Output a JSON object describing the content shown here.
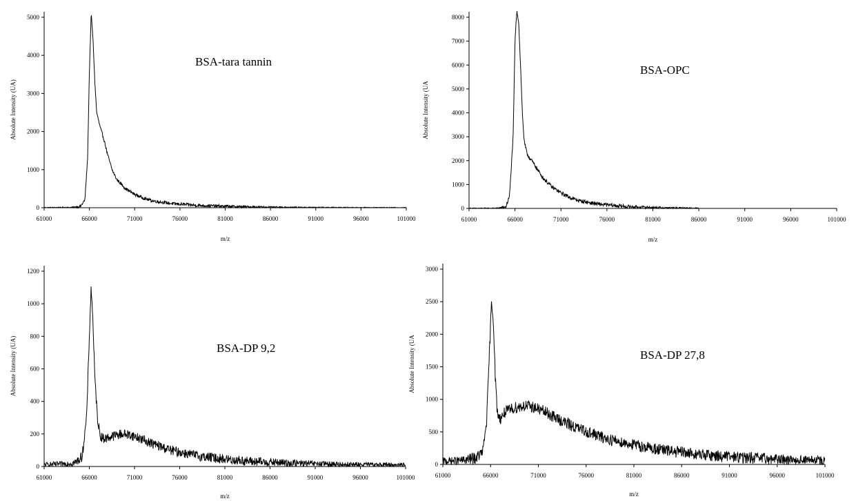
{
  "chart_data": [
    {
      "type": "line",
      "annotation": "BSA-tara tannin",
      "xlabel": "m/z",
      "ylabel": "Absolute Intensity (UA)",
      "xlim": [
        61000,
        101000
      ],
      "ylim": [
        0,
        5000
      ],
      "x_ticks": [
        "61000",
        "66000",
        "71000",
        "76000",
        "81000",
        "86000",
        "91000",
        "96000",
        "101000"
      ],
      "y_ticks": [
        "0",
        "1000",
        "2000",
        "3000",
        "4000",
        "5000"
      ],
      "series": [
        {
          "x": [
            61000,
            64000,
            65000,
            65500,
            65800,
            66000,
            66200,
            66400,
            66600,
            66800,
            67200,
            67600,
            68000,
            68500,
            69000,
            70000,
            71000,
            72000,
            73000,
            75000,
            78000,
            82000,
            86000,
            90000,
            95000,
            101000
          ],
          "y": [
            5,
            8,
            30,
            200,
            1300,
            3600,
            5100,
            4400,
            3300,
            2500,
            2100,
            1800,
            1400,
            1000,
            750,
            500,
            350,
            250,
            180,
            110,
            60,
            30,
            15,
            10,
            5,
            3
          ],
          "noise": 40
        }
      ]
    },
    {
      "type": "line",
      "annotation": "BSA-OPC",
      "xlabel": "m/z",
      "ylabel": "Absolute Intensity (UA",
      "xlim": [
        61000,
        101000
      ],
      "ylim": [
        0,
        8000
      ],
      "x_ticks": [
        "61000",
        "66000",
        "71000",
        "76000",
        "81000",
        "86000",
        "91000",
        "96000",
        "101000"
      ],
      "y_ticks": [
        "0",
        "1000",
        "2000",
        "3000",
        "4000",
        "5000",
        "6000",
        "7000",
        "8000"
      ],
      "series": [
        {
          "x": [
            61000,
            64000,
            65000,
            65400,
            65800,
            66000,
            66200,
            66400,
            66600,
            66800,
            67000,
            67300,
            67600,
            68000,
            68500,
            69000,
            70000,
            71000,
            72000,
            73000,
            75000,
            78000,
            80000,
            82000,
            84000,
            86000
          ],
          "y": [
            5,
            8,
            60,
            500,
            3000,
            7000,
            8300,
            7800,
            6000,
            4000,
            2800,
            2300,
            2100,
            1900,
            1600,
            1300,
            900,
            650,
            450,
            320,
            180,
            80,
            50,
            30,
            20,
            10
          ],
          "noise": 80
        }
      ]
    },
    {
      "type": "line",
      "annotation": "BSA-DP 9,2",
      "xlabel": "m/z",
      "ylabel": "Absolute Intensity (UA)",
      "xlim": [
        61000,
        101000
      ],
      "ylim": [
        0,
        1200
      ],
      "x_ticks": [
        "61000",
        "66000",
        "71000",
        "76000",
        "81000",
        "86000",
        "91000",
        "96000",
        "101000"
      ],
      "y_ticks": [
        "0",
        "200",
        "400",
        "600",
        "800",
        "1000",
        "1200"
      ],
      "series": [
        {
          "x": [
            61000,
            63000,
            64500,
            65200,
            65700,
            66000,
            66200,
            66400,
            66600,
            66900,
            67200,
            67600,
            68500,
            69500,
            70500,
            71500,
            73000,
            75000,
            78000,
            81000,
            84000,
            88000,
            92000,
            96000,
            101000
          ],
          "y": [
            12,
            15,
            25,
            60,
            300,
            800,
            1100,
            900,
            550,
            300,
            190,
            170,
            185,
            200,
            195,
            175,
            140,
            100,
            65,
            45,
            30,
            22,
            15,
            12,
            10
          ],
          "noise": 30
        }
      ]
    },
    {
      "type": "line",
      "annotation": "BSA-DP 27,8",
      "xlabel": "m/z",
      "ylabel": "Absolute Intensity (UA",
      "xlim": [
        61000,
        101000
      ],
      "ylim": [
        0,
        3000
      ],
      "x_ticks": [
        "61000",
        "66000",
        "71000",
        "76000",
        "81000",
        "86000",
        "91000",
        "96000",
        "101000"
      ],
      "y_ticks": [
        "0",
        "500",
        "1000",
        "1500",
        "2000",
        "2500",
        "3000"
      ],
      "series": [
        {
          "x": [
            61000,
            63000,
            64500,
            65200,
            65600,
            65900,
            66100,
            66300,
            66500,
            66700,
            67000,
            67500,
            68500,
            69500,
            70500,
            71500,
            73000,
            75000,
            78000,
            81000,
            84000,
            88000,
            92000,
            96000,
            101000
          ],
          "y": [
            50,
            60,
            100,
            200,
            700,
            1800,
            2500,
            2200,
            1300,
            800,
            700,
            800,
            870,
            900,
            880,
            820,
            700,
            560,
            400,
            300,
            220,
            150,
            110,
            80,
            60
          ],
          "noise": 90
        }
      ]
    }
  ]
}
